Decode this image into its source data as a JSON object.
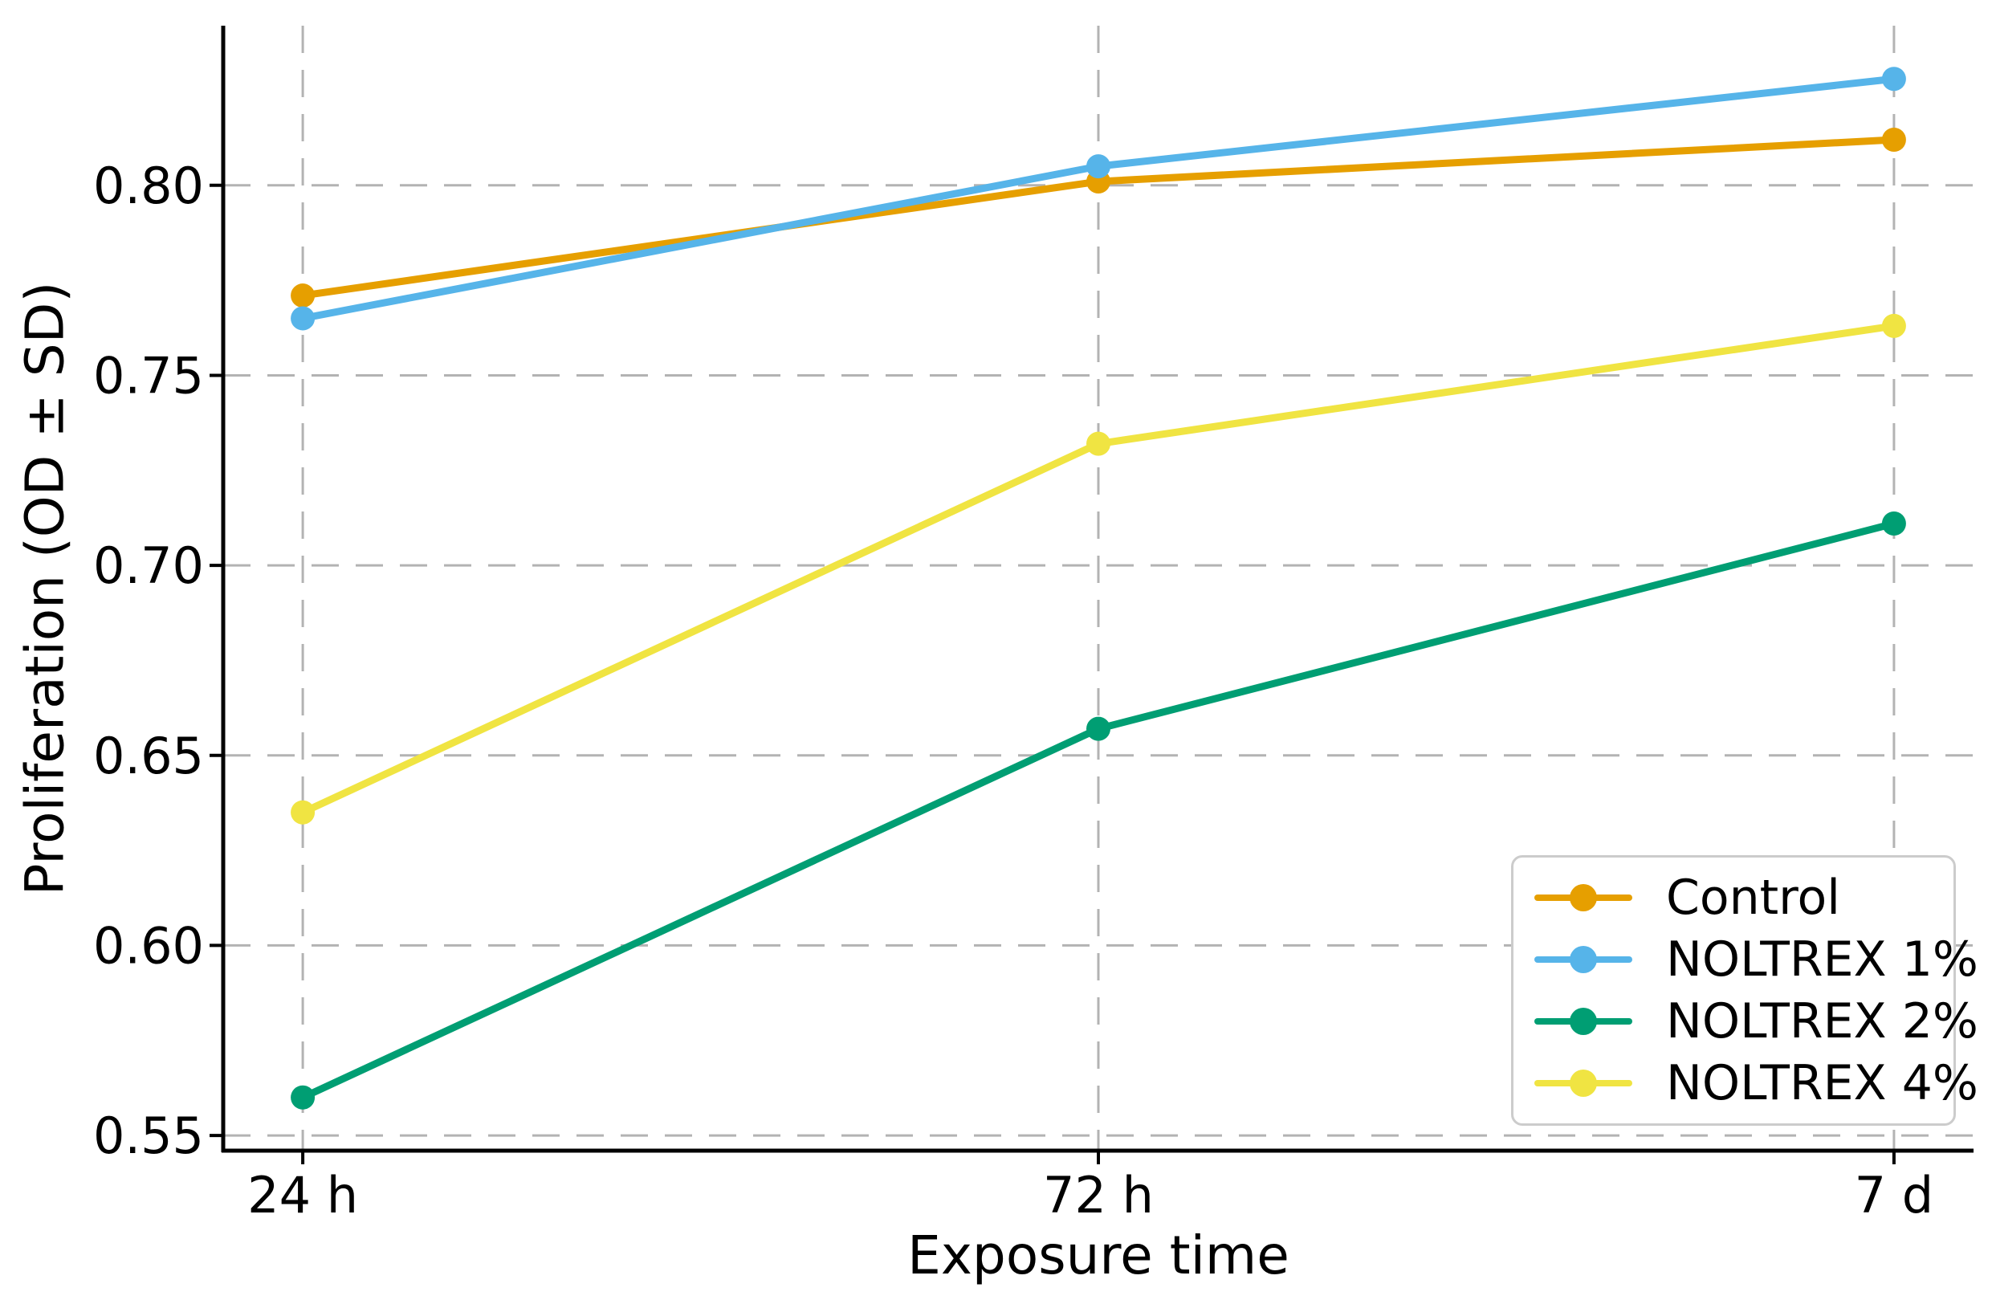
{
  "chart_data": {
    "type": "line",
    "title": "",
    "xlabel": "Exposure time",
    "ylabel": "Proliferation (OD ± SD)",
    "categories": [
      "24 h",
      "72 h",
      "7 d"
    ],
    "series": [
      {
        "name": "Control",
        "color": "#E69F00",
        "values": [
          0.771,
          0.801,
          0.812
        ]
      },
      {
        "name": "NOLTREX 1%",
        "color": "#56B4E9",
        "values": [
          0.765,
          0.805,
          0.828
        ]
      },
      {
        "name": "NOLTREX 2%",
        "color": "#009E73",
        "values": [
          0.56,
          0.657,
          0.711
        ]
      },
      {
        "name": "NOLTREX 4%",
        "color": "#F0E442",
        "values": [
          0.635,
          0.732,
          0.763
        ]
      }
    ],
    "yticks": [
      0.55,
      0.6,
      0.65,
      0.7,
      0.75,
      0.8
    ],
    "ytick_labels": [
      "0.55",
      "0.60",
      "0.65",
      "0.70",
      "0.75",
      "0.80"
    ],
    "ylim": [
      0.546,
      0.842
    ],
    "xlim": [
      -0.1,
      2.1
    ],
    "grid": true,
    "grid_color": "#b3b3b3",
    "axis_color": "#000000",
    "legend_position": "lower right",
    "legend_items": [
      "Control",
      "NOLTREX 1%",
      "NOLTREX 2%",
      "NOLTREX 4%"
    ]
  }
}
